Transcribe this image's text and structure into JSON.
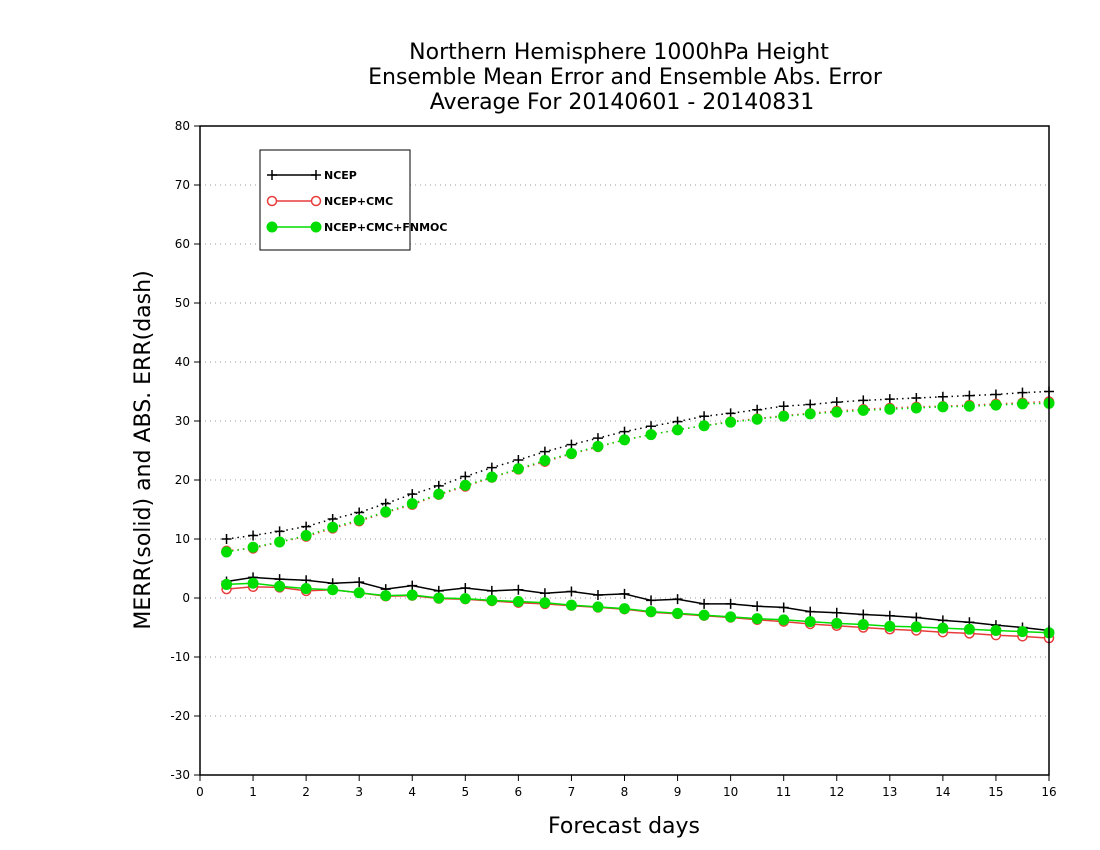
{
  "chart_data": {
    "type": "line",
    "title_lines": [
      "Northern Hemisphere 1000hPa Height",
      "Ensemble Mean Error and Ensemble Abs. Error",
      "Average For 20140601 - 20140831"
    ],
    "xlabel": "Forecast days",
    "ylabel": "MERR(solid) and ABS. ERR(dash)",
    "xlim": [
      0,
      16
    ],
    "ylim": [
      -30,
      80
    ],
    "xticks": [
      0,
      1,
      2,
      3,
      4,
      5,
      6,
      7,
      8,
      9,
      10,
      11,
      12,
      13,
      14,
      15,
      16
    ],
    "yticks": [
      -30,
      -20,
      -10,
      0,
      10,
      20,
      30,
      40,
      50,
      60,
      70,
      80
    ],
    "grid": "horizontal dotted",
    "legend": {
      "placement": "top-left",
      "entries": [
        {
          "name": "NCEP",
          "color": "#000000",
          "marker": "plus"
        },
        {
          "name": "NCEP+CMC",
          "color": "#e83c3c",
          "marker": "open-circle"
        },
        {
          "name": "NCEP+CMC+FNMOC",
          "color": "#00dd00",
          "marker": "filled-circle"
        }
      ]
    },
    "x": [
      0.5,
      1,
      1.5,
      2,
      2.5,
      3,
      3.5,
      4,
      4.5,
      5,
      5.5,
      6,
      6.5,
      7,
      7.5,
      8,
      8.5,
      9,
      9.5,
      10,
      10.5,
      11,
      11.5,
      12,
      12.5,
      13,
      13.5,
      14,
      14.5,
      15,
      15.5,
      16
    ],
    "series": [
      {
        "name": "NCEP",
        "style": "solid",
        "color": "#000000",
        "marker": "plus",
        "values": [
          2.8,
          3.5,
          3.2,
          3.0,
          2.5,
          2.7,
          1.5,
          2.1,
          1.2,
          1.7,
          1.2,
          1.4,
          0.8,
          1.1,
          0.5,
          0.7,
          -0.4,
          -0.2,
          -1.0,
          -1.0,
          -1.4,
          -1.6,
          -2.3,
          -2.5,
          -2.8,
          -3.0,
          -3.3,
          -3.8,
          -4.1,
          -4.6,
          -5.0,
          -5.5
        ]
      },
      {
        "name": "NCEP+CMC",
        "style": "solid",
        "color": "#e83c3c",
        "marker": "open-circle",
        "values": [
          1.5,
          1.9,
          1.8,
          1.2,
          1.4,
          0.9,
          0.3,
          0.4,
          -0.1,
          -0.2,
          -0.5,
          -0.8,
          -1.0,
          -1.3,
          -1.6,
          -1.9,
          -2.4,
          -2.7,
          -3.0,
          -3.3,
          -3.7,
          -4.0,
          -4.4,
          -4.7,
          -5.0,
          -5.3,
          -5.5,
          -5.8,
          -6.0,
          -6.3,
          -6.5,
          -6.8
        ]
      },
      {
        "name": "NCEP+CMC+FNMOC",
        "style": "solid",
        "color": "#00dd00",
        "marker": "filled-circle",
        "values": [
          2.3,
          2.5,
          2.0,
          1.6,
          1.4,
          0.9,
          0.4,
          0.5,
          0.0,
          -0.1,
          -0.4,
          -0.6,
          -0.8,
          -1.2,
          -1.5,
          -1.8,
          -2.3,
          -2.6,
          -2.9,
          -3.2,
          -3.5,
          -3.7,
          -4.0,
          -4.3,
          -4.5,
          -4.8,
          -4.9,
          -5.1,
          -5.3,
          -5.5,
          -5.7,
          -5.9
        ]
      },
      {
        "name": "NCEP",
        "style": "dotted",
        "color": "#000000",
        "marker": "plus",
        "values": [
          10.0,
          10.6,
          11.3,
          12.1,
          13.4,
          14.5,
          16.0,
          17.6,
          19.0,
          20.6,
          22.1,
          23.4,
          24.8,
          26.0,
          27.1,
          28.2,
          29.1,
          29.9,
          30.8,
          31.3,
          31.9,
          32.5,
          32.8,
          33.2,
          33.5,
          33.7,
          33.9,
          34.1,
          34.3,
          34.5,
          34.8,
          35.0
        ]
      },
      {
        "name": "NCEP+CMC",
        "style": "dotted",
        "color": "#e83c3c",
        "marker": "open-circle",
        "values": [
          8.0,
          8.4,
          9.5,
          10.4,
          11.8,
          13.0,
          14.5,
          15.8,
          17.5,
          18.9,
          20.4,
          21.8,
          23.1,
          24.4,
          25.6,
          26.8,
          27.7,
          28.5,
          29.2,
          29.9,
          30.4,
          30.9,
          31.3,
          31.7,
          32.0,
          32.2,
          32.4,
          32.5,
          32.7,
          32.9,
          33.1,
          33.3
        ]
      },
      {
        "name": "NCEP+CMC+FNMOC",
        "style": "dotted",
        "color": "#00dd00",
        "marker": "filled-circle",
        "values": [
          7.8,
          8.6,
          9.5,
          10.6,
          12.0,
          13.2,
          14.6,
          16.0,
          17.6,
          19.1,
          20.5,
          21.9,
          23.3,
          24.5,
          25.7,
          26.8,
          27.7,
          28.5,
          29.2,
          29.8,
          30.3,
          30.8,
          31.2,
          31.5,
          31.8,
          32.0,
          32.2,
          32.4,
          32.5,
          32.7,
          32.9,
          33.0
        ]
      }
    ]
  }
}
